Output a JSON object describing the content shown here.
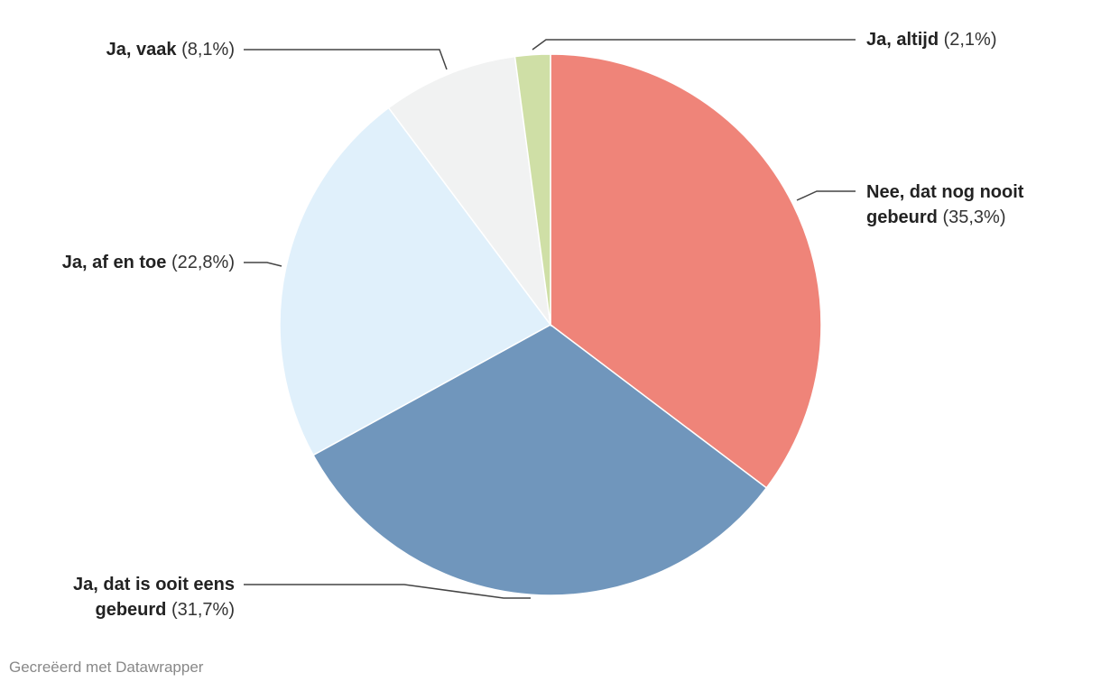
{
  "chart_data": {
    "type": "pie",
    "categories": [
      "Nee, dat nog nooit gebeurd",
      "Ja, dat is ooit eens gebeurd",
      "Ja, af en toe",
      "Ja, vaak",
      "Ja, altijd"
    ],
    "values": [
      35.3,
      31.7,
      22.8,
      8.1,
      2.1
    ],
    "value_labels": [
      "(35,3%)",
      "(31,7%)",
      "(22,8%)",
      "(8,1%)",
      "(2,1%)"
    ],
    "colors": [
      "#ef8479",
      "#7096bc",
      "#e0f0fb",
      "#f1f2f2",
      "#cfdfa6"
    ],
    "source": "Gecreëerd met Datawrapper"
  }
}
